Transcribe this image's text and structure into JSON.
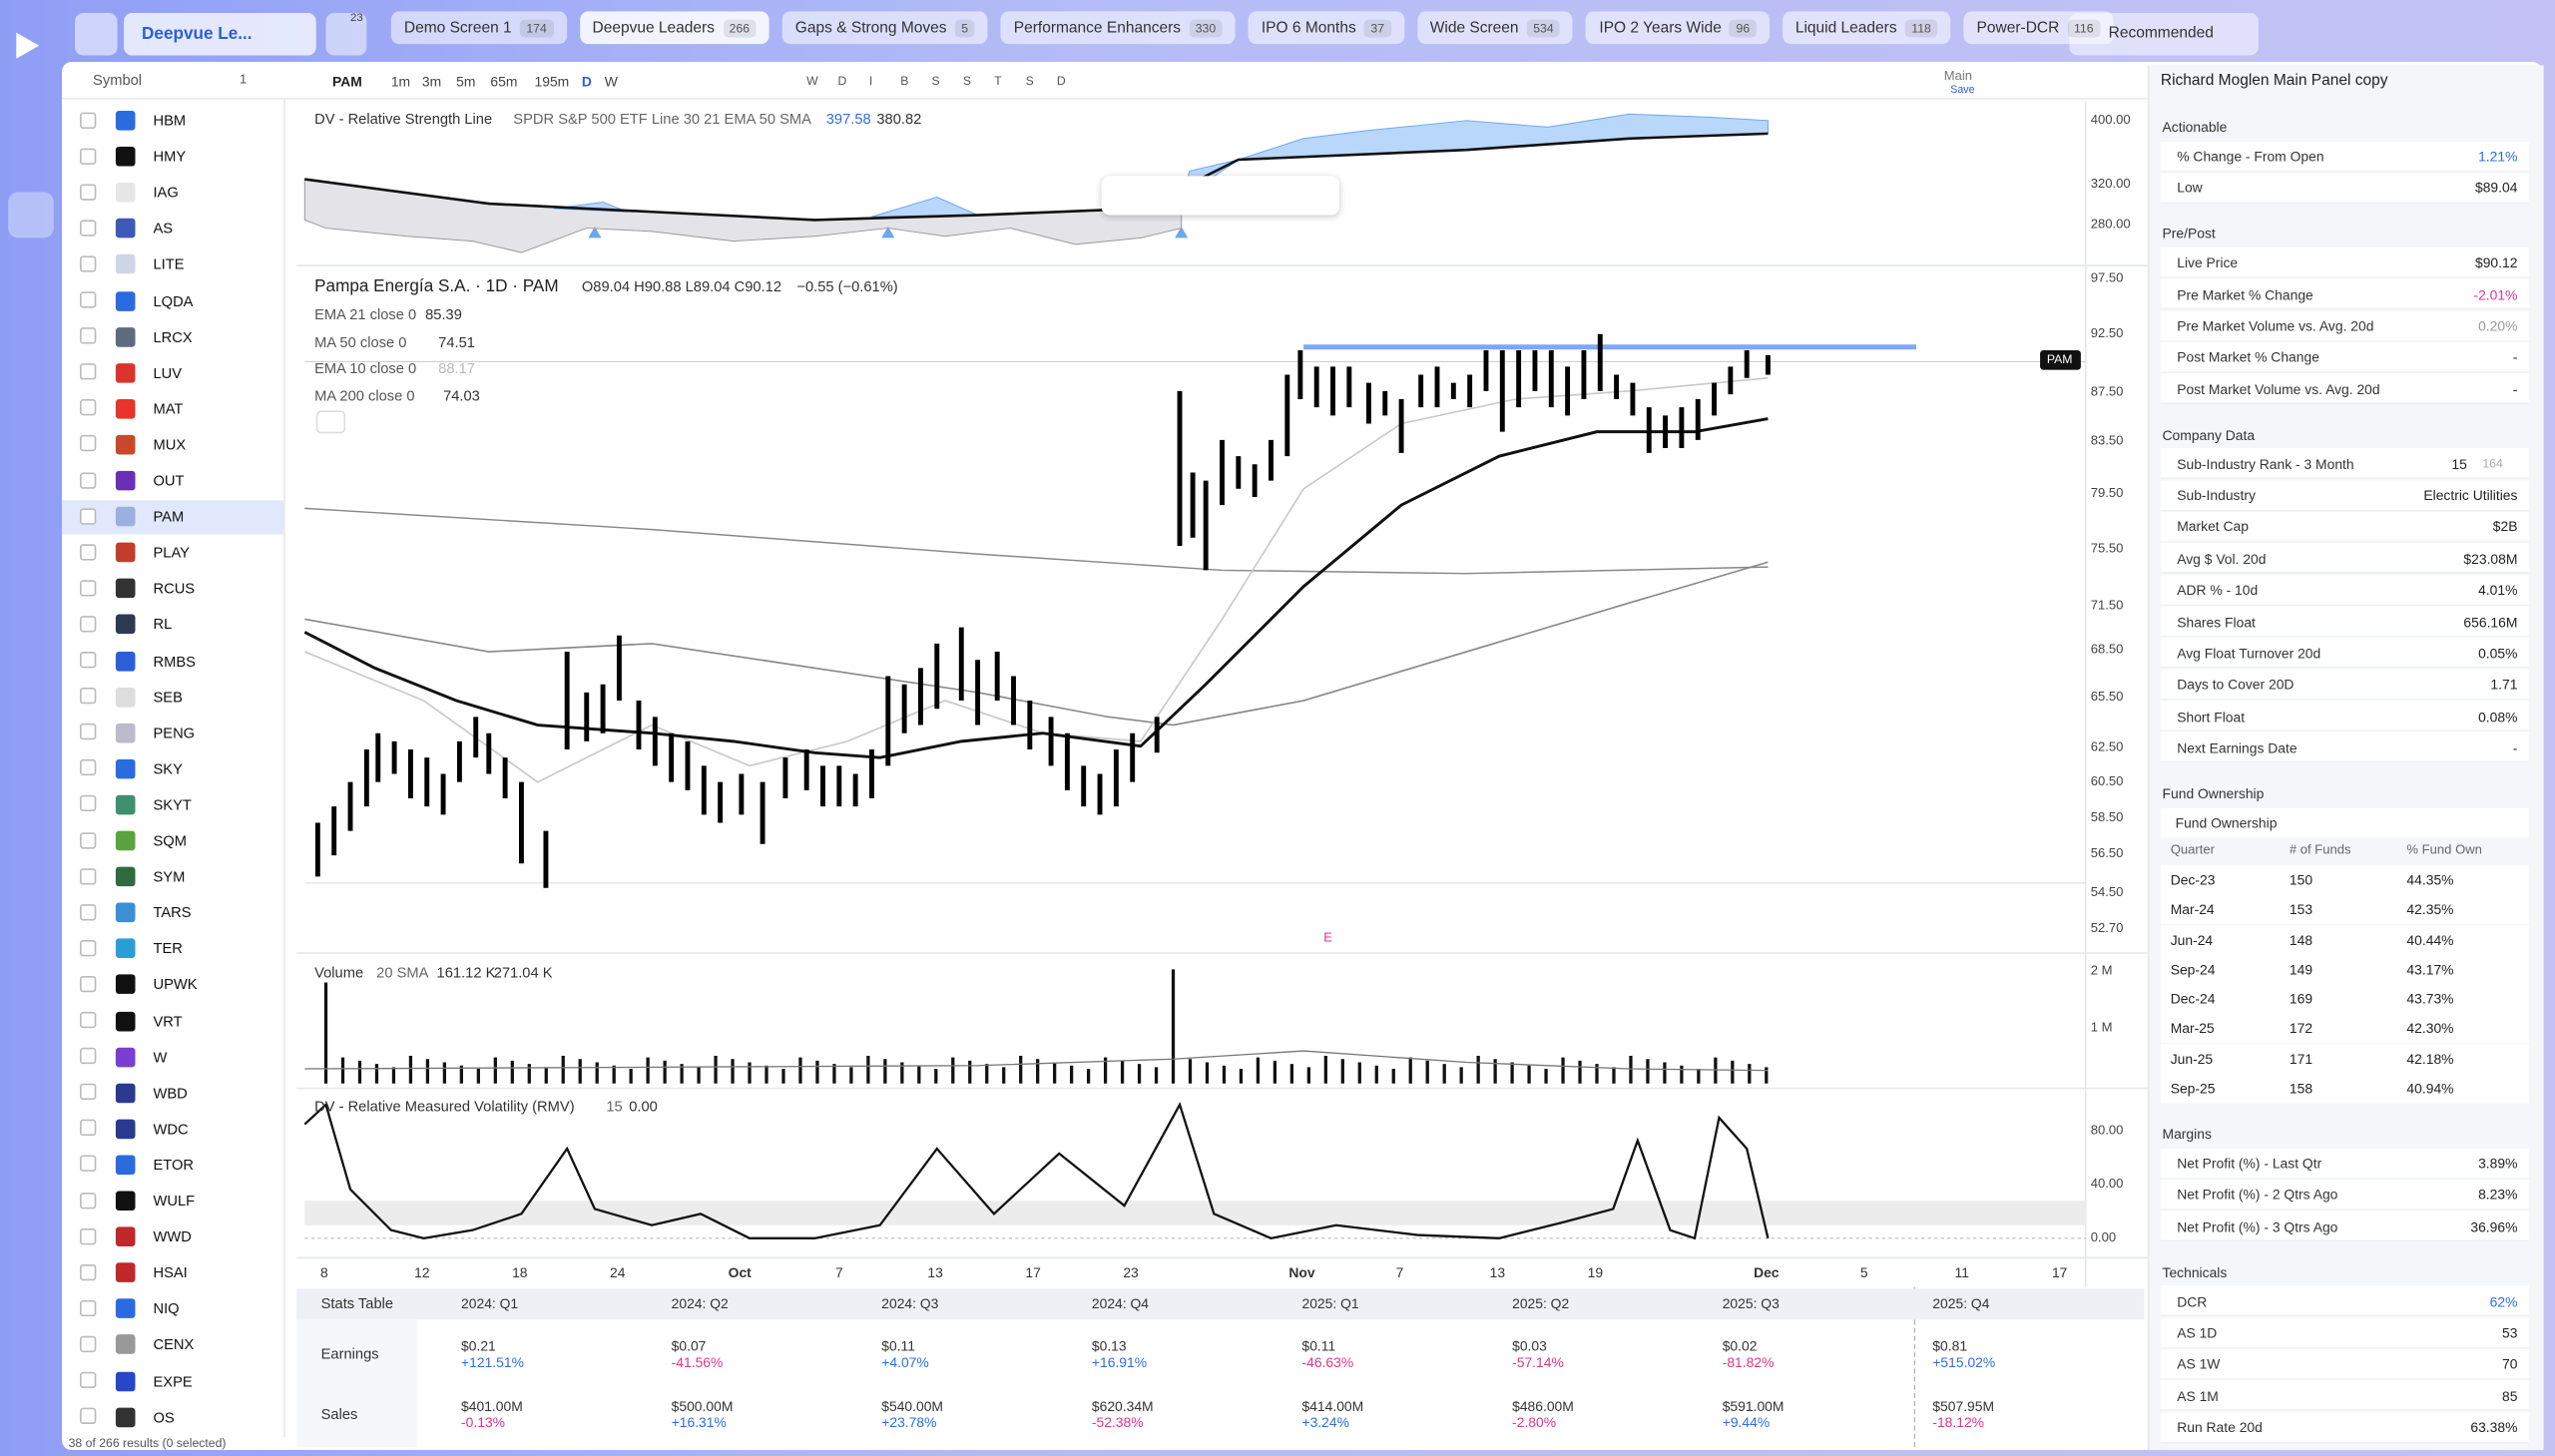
{
  "top_bar": {
    "watchlist": "Deepvue Le...",
    "filter_badge": "23",
    "tabs": [
      {
        "label": "Demo Screen 1",
        "count": "174"
      },
      {
        "label": "Deepvue Leaders",
        "count": "266"
      },
      {
        "label": "Gaps & Strong Moves",
        "count": "5"
      },
      {
        "label": "Performance Enhancers",
        "count": "330"
      },
      {
        "label": "IPO 6 Months",
        "count": "37"
      },
      {
        "label": "Wide Screen",
        "count": "534"
      },
      {
        "label": "IPO 2 Years Wide",
        "count": "96"
      },
      {
        "label": "Liquid Leaders",
        "count": "118"
      },
      {
        "label": "Power-DCR",
        "count": "116"
      }
    ],
    "sort": "Recommended"
  },
  "watchlist": {
    "header": "Symbol",
    "selected_count": "1",
    "symbols": [
      "HBM",
      "HMY",
      "IAG",
      "AS",
      "LITE",
      "LQDA",
      "LRCX",
      "LUV",
      "MAT",
      "MUX",
      "OUT",
      "PAM",
      "PLAY",
      "RCUS",
      "RL",
      "RMBS",
      "SEB",
      "PENG",
      "SKY",
      "SKYT",
      "SQM",
      "SYM",
      "TARS",
      "TER",
      "UPWK",
      "VRT",
      "W",
      "WBD",
      "WDC",
      "ETOR",
      "WULF",
      "WWD",
      "HSAI",
      "NIQ",
      "CENX",
      "EXPE",
      "OS"
    ],
    "selected": "PAM",
    "footer": "38 of 266 results (0 selected)"
  },
  "toolbar": {
    "symbol": "PAM",
    "intervals": [
      "1m",
      "3m",
      "5m",
      "65m",
      "195m",
      "D",
      "W"
    ],
    "ranges": [
      "W",
      "D",
      "I",
      "B",
      "S",
      "S",
      "T",
      "S",
      "D"
    ],
    "layout": "Main",
    "save": "Save"
  },
  "chart": {
    "rs_legend": {
      "title": "DV - Relative Strength Line",
      "params": "SPDR S&P 500 ETF Line 30 21 EMA 50 SMA",
      "value1": "397.58",
      "value2": "380.82"
    },
    "price_legend": {
      "title": "Pampa Energía S.A. · 1D · PAM",
      "ohlc": "O89.04 H90.88 L89.04 C90.12",
      "change": "−0.55 (−0.61%)"
    },
    "ma_legends": [
      {
        "label": "EMA 21 close 0",
        "value": "85.39"
      },
      {
        "label": "MA 50 close 0",
        "value": "74.51"
      },
      {
        "label": "EMA 10 close 0",
        "value": "88.17"
      },
      {
        "label": "MA 200 close 0",
        "value": "74.03"
      }
    ],
    "volume_legend": {
      "title": "Volume",
      "params": "20 SMA",
      "value1": "161.12 K",
      "value2": "271.04 K"
    },
    "rmv_legend": {
      "title": "DV - Relative Measured Volatility (RMV)",
      "params": "15",
      "value": "0.00"
    },
    "price_tag": "PAM",
    "earnings_marker": "E",
    "rs_axis": [
      "400.00",
      "320.00",
      "280.00"
    ],
    "price_axis": [
      "97.50",
      "92.50",
      "87.50",
      "83.50",
      "79.50",
      "75.50",
      "71.50",
      "68.50",
      "65.50",
      "62.50",
      "60.50",
      "58.50",
      "56.50",
      "54.50",
      "52.70"
    ],
    "volume_axis": [
      "2 M",
      "1 M"
    ],
    "rmv_axis": [
      "80.00",
      "40.00",
      "0.00"
    ],
    "x_axis": [
      "8",
      "12",
      "18",
      "24",
      "Oct",
      "7",
      "13",
      "17",
      "23",
      "Nov",
      "7",
      "13",
      "19",
      "Dec",
      "5",
      "11",
      "17"
    ]
  },
  "stats_table": {
    "title": "Stats Table",
    "quarters": [
      "2024: Q1",
      "2024: Q2",
      "2024: Q3",
      "2024: Q4",
      "2025: Q1",
      "2025: Q2",
      "2025: Q3",
      "2025: Q4"
    ],
    "rows": [
      {
        "label": "Earnings",
        "cells": [
          {
            "value": "$0.21",
            "change": "+121.51%"
          },
          {
            "value": "$0.07",
            "change": "-41.56%"
          },
          {
            "value": "$0.11",
            "change": "+4.07%"
          },
          {
            "value": "$0.13",
            "change": "+16.91%"
          },
          {
            "value": "$0.11",
            "change": "-46.63%"
          },
          {
            "value": "$0.03",
            "change": "-57.14%"
          },
          {
            "value": "$0.02",
            "change": "-81.82%"
          },
          {
            "value": "$0.81",
            "change": "+515.02%"
          }
        ]
      },
      {
        "label": "Sales",
        "cells": [
          {
            "value": "$401.00M",
            "change": "-0.13%"
          },
          {
            "value": "$500.00M",
            "change": "+16.31%"
          },
          {
            "value": "$540.00M",
            "change": "+23.78%"
          },
          {
            "value": "$620.34M",
            "change": "-52.38%"
          },
          {
            "value": "$414.00M",
            "change": "+3.24%"
          },
          {
            "value": "$486.00M",
            "change": "-2.80%"
          },
          {
            "value": "$591.00M",
            "change": "+9.44%"
          },
          {
            "value": "$507.95M",
            "change": "-18.12%"
          }
        ]
      }
    ]
  },
  "panel": {
    "title": "Richard Moglen Main Panel copy",
    "sections": [
      {
        "title": "Actionable",
        "rows": [
          {
            "label": "% Change - From Open",
            "value": "1.21%",
            "color": "#2b6fe0"
          },
          {
            "label": "Low",
            "value": "$89.04"
          }
        ]
      },
      {
        "title": "Pre/Post",
        "rows": [
          {
            "label": "Live Price",
            "value": "$90.12"
          },
          {
            "label": "Pre Market % Change",
            "value": "-2.01%",
            "color": "#e0338f"
          },
          {
            "label": "Pre Market Volume vs. Avg. 20d",
            "value": "0.20%",
            "color": "#999999"
          },
          {
            "label": "Post Market % Change",
            "value": "-"
          },
          {
            "label": "Post Market Volume vs. Avg. 20d",
            "value": "-"
          }
        ]
      },
      {
        "title": "Company Data",
        "rows": [
          {
            "label": "Sub-Industry Rank - 3 Month",
            "value": "15",
            "extra": "164"
          },
          {
            "label": "Sub-Industry",
            "value": "Electric Utilities"
          },
          {
            "label": "Market Cap",
            "value": "$2B"
          },
          {
            "label": "Avg $ Vol. 20d",
            "value": "$23.08M"
          },
          {
            "label": "ADR % - 10d",
            "value": "4.01%"
          },
          {
            "label": "Shares Float",
            "value": "656.16M"
          },
          {
            "label": "Avg Float Turnover 20d",
            "value": "0.05%"
          },
          {
            "label": "Days to Cover 20D",
            "value": "1.71"
          },
          {
            "label": "Short Float",
            "value": "0.08%"
          },
          {
            "label": "Next Earnings Date",
            "value": "-"
          }
        ]
      },
      {
        "title": "Fund Ownership",
        "subtitle": "Fund Ownership",
        "columns": [
          "Quarter",
          "# of Funds",
          "% Fund Own"
        ],
        "table": [
          [
            "Dec-23",
            "150",
            "44.35%"
          ],
          [
            "Mar-24",
            "153",
            "42.35%"
          ],
          [
            "Jun-24",
            "148",
            "40.44%"
          ],
          [
            "Sep-24",
            "149",
            "43.17%"
          ],
          [
            "Dec-24",
            "169",
            "43.73%"
          ],
          [
            "Mar-25",
            "172",
            "42.30%"
          ],
          [
            "Jun-25",
            "171",
            "42.18%"
          ],
          [
            "Sep-25",
            "158",
            "40.94%"
          ]
        ]
      },
      {
        "title": "Margins",
        "rows": [
          {
            "label": "Net Profit (%) - Last Qtr",
            "value": "3.89%"
          },
          {
            "label": "Net Profit (%) - 2 Qtrs Ago",
            "value": "8.23%"
          },
          {
            "label": "Net Profit (%) - 3 Qtrs Ago",
            "value": "36.96%"
          }
        ]
      },
      {
        "title": "Technicals",
        "rows": [
          {
            "label": "DCR",
            "value": "62%",
            "color": "#2b6fe0"
          },
          {
            "label": "AS 1D",
            "value": "53"
          },
          {
            "label": "AS 1W",
            "value": "70"
          },
          {
            "label": "AS 1M",
            "value": "85"
          },
          {
            "label": "Run Rate 20d",
            "value": "63.38%"
          }
        ]
      }
    ]
  }
}
